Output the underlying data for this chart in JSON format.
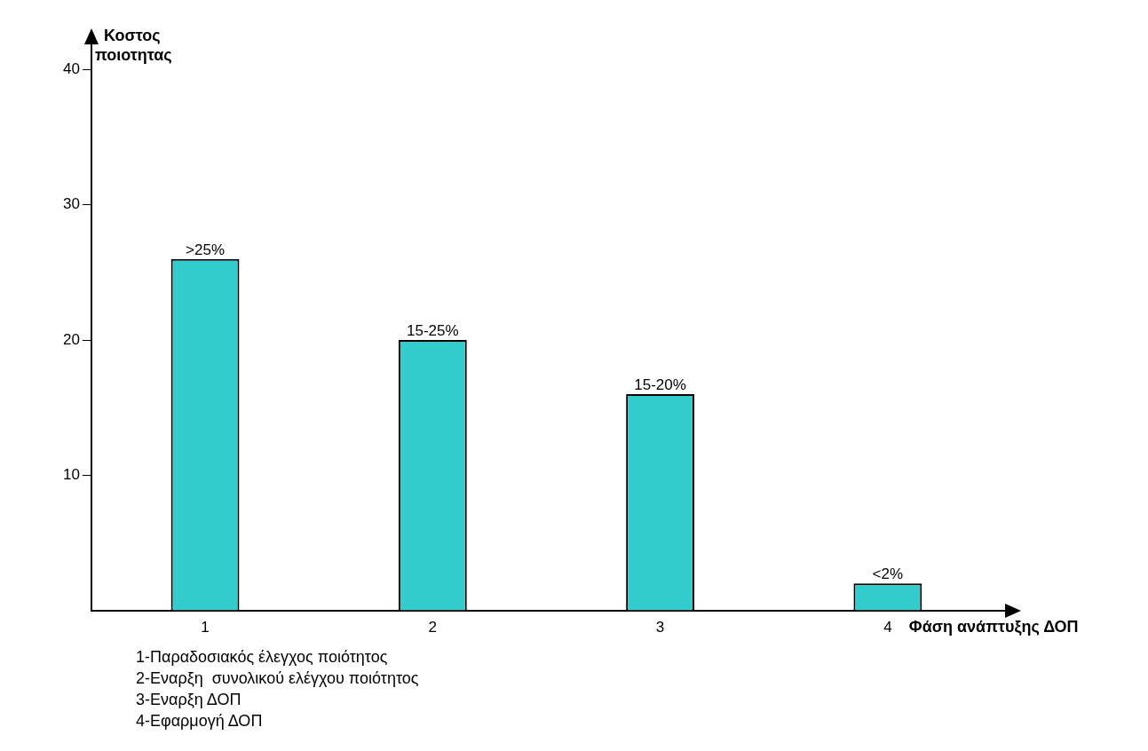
{
  "chart_data": {
    "type": "bar",
    "xlabel": "Φάση ανάπτυξης ΔΟΠ",
    "ylabel": "Κοστος ποιοτητας",
    "categories": [
      "1",
      "2",
      "3",
      "4"
    ],
    "values": [
      26,
      20,
      16,
      2
    ],
    "color": "#33cccc",
    "ylim": [
      0,
      42
    ],
    "yticks": [
      10,
      20,
      30,
      40
    ],
    "grid": false,
    "legend": false,
    "annotations": [
      {
        "text": ">25%",
        "x": "1",
        "y": 26
      },
      {
        "text": "15-25%",
        "x": "2",
        "y": 20
      },
      {
        "text": "15-20%",
        "x": "3",
        "y": 16
      },
      {
        "text": "<2%",
        "x": "4",
        "y": 2
      },
      "1-Παραδοσιακός έλεγχος ποιότητος",
      "2-Εναρξη  συνολικού ελέγχου ποιότητος",
      "3-Εναρξη ΔΟΠ",
      "4-Εφαρμογή ΔΟΠ"
    ]
  }
}
